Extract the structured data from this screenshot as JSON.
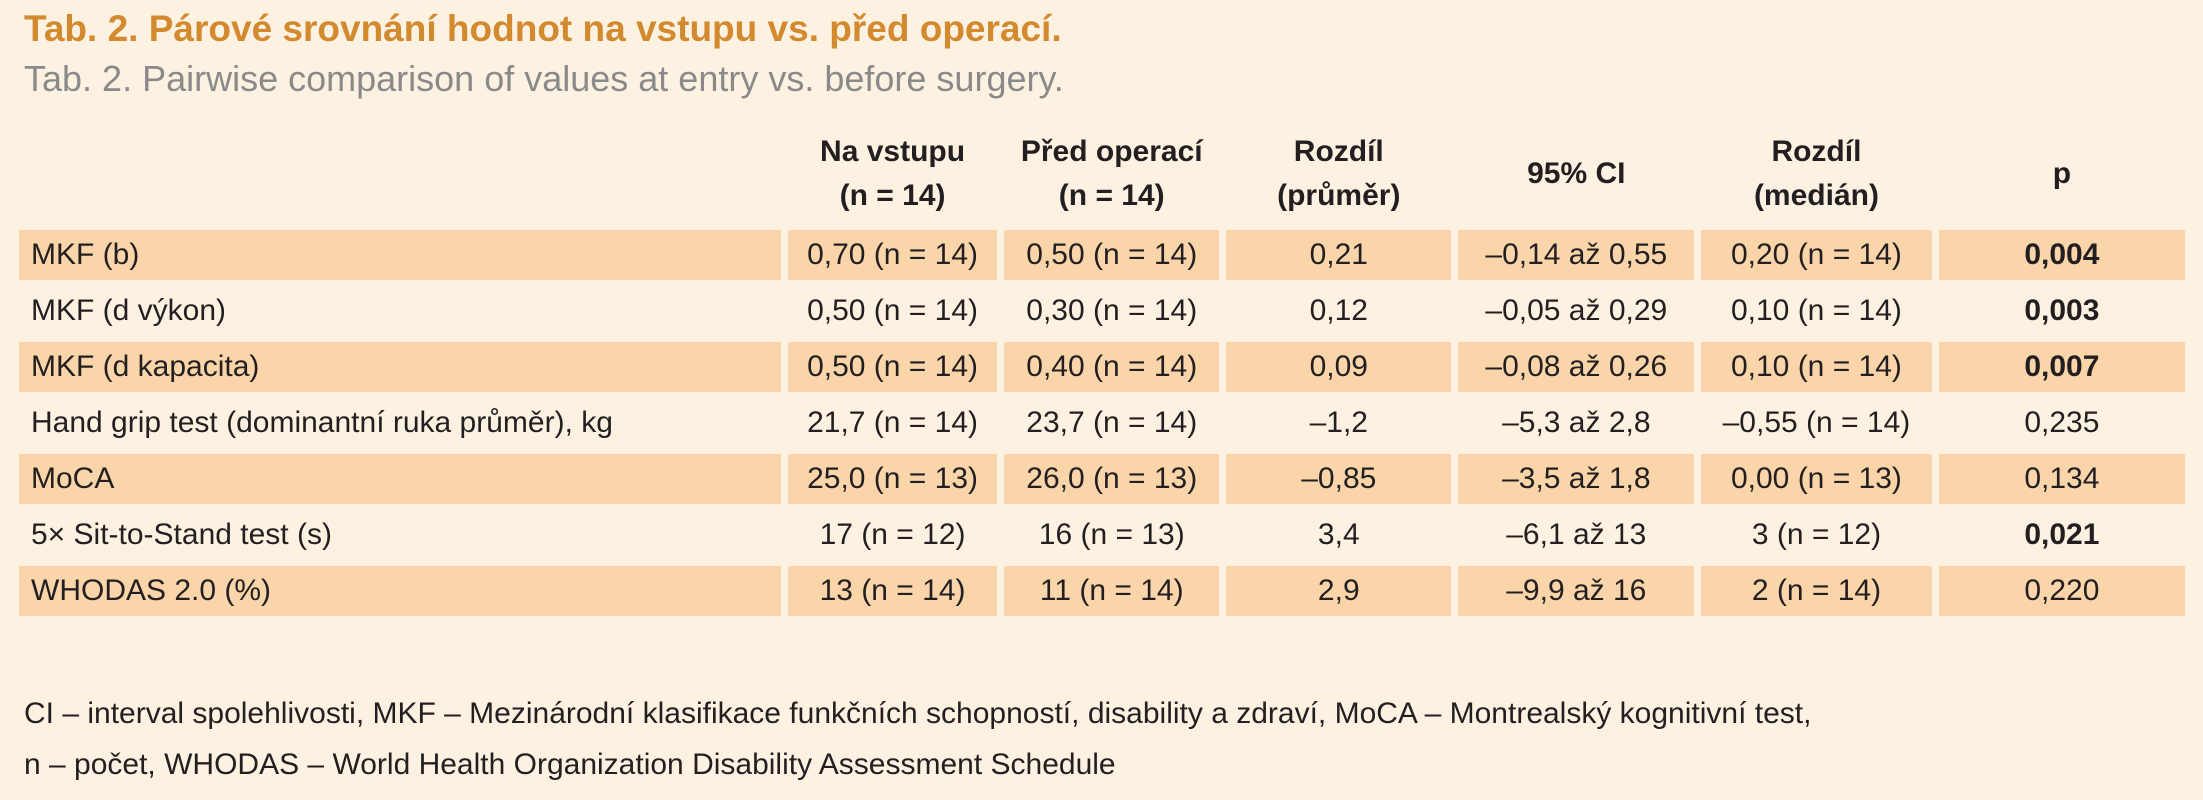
{
  "title_cz": "Tab. 2. Párové srovnání hodnot na vstupu vs. před operací.",
  "title_en": "Tab. 2. Pairwise comparison of values at entry vs. before surgery.",
  "headers": {
    "label": "",
    "col1_line1": "Na vstupu",
    "col1_line2": "(n = 14)",
    "col2_line1": "Před operací",
    "col2_line2": "(n = 14)",
    "col3_line1": "Rozdíl",
    "col3_line2": "(průměr)",
    "col4": "95% CI",
    "col5_line1": "Rozdíl",
    "col5_line2": "(medián)",
    "col6": "p"
  },
  "rows": [
    {
      "label": "MKF (b)",
      "entry": "0,70 (n = 14)",
      "before": "0,50 (n = 14)",
      "mean_diff": "0,21",
      "ci": "–0,14 až 0,55",
      "median_diff": "0,20 (n = 14)",
      "p": "0,004",
      "p_bold": true
    },
    {
      "label": "MKF (d výkon)",
      "entry": "0,50 (n = 14)",
      "before": "0,30 (n = 14)",
      "mean_diff": "0,12",
      "ci": "–0,05 až 0,29",
      "median_diff": "0,10 (n = 14)",
      "p": "0,003",
      "p_bold": true
    },
    {
      "label": "MKF (d kapacita)",
      "entry": "0,50 (n = 14)",
      "before": "0,40 (n = 14)",
      "mean_diff": "0,09",
      "ci": "–0,08 až 0,26",
      "median_diff": "0,10 (n = 14)",
      "p": "0,007",
      "p_bold": true
    },
    {
      "label": "Hand grip test (dominantní ruka průměr), kg",
      "entry": "21,7 (n = 14)",
      "before": "23,7 (n = 14)",
      "mean_diff": "–1,2",
      "ci": "–5,3 až 2,8",
      "median_diff": "–0,55 (n = 14)",
      "p": "0,235",
      "p_bold": false
    },
    {
      "label": "MoCA",
      "entry": "25,0 (n = 13)",
      "before": "26,0 (n = 13)",
      "mean_diff": "–0,85",
      "ci": "–3,5 až 1,8",
      "median_diff": "0,00 (n = 13)",
      "p": "0,134",
      "p_bold": false
    },
    {
      "label": "5× Sit-to-Stand test (s)",
      "entry": "17 (n = 12)",
      "before": "16 (n = 13)",
      "mean_diff": "3,4",
      "ci": "–6,1 až 13",
      "median_diff": "3 (n = 12)",
      "p": "0,021",
      "p_bold": true
    },
    {
      "label": "WHODAS 2.0 (%)",
      "entry": "13 (n = 14)",
      "before": "11 (n = 14)",
      "mean_diff": "2,9",
      "ci": "–9,9 až 16",
      "median_diff": "2 (n = 14)",
      "p": "0,220",
      "p_bold": false
    }
  ],
  "footnote_line1": "CI – interval spolehlivosti, MKF – Mezinárodní klasifikace funkčních schopností, disability a zdraví, MoCA – Montrealský kognitivní test,",
  "footnote_line2": "n – počet, WHODAS – World Health Organization Disability Assessment Schedule",
  "colors": {
    "background": "#fdf2e2",
    "row_shade": "#f9d5a9",
    "title": "#d38a2f",
    "subtitle": "#8a8a8a"
  }
}
